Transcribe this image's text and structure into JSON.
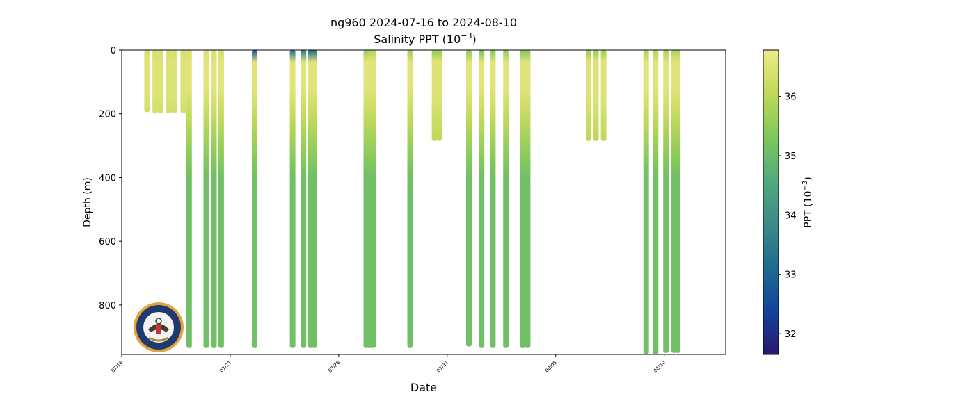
{
  "chart_data": {
    "type": "scatter",
    "title_line1": "ng960 2024-07-16 to 2024-08-10",
    "title_line2_main": "Salinity PPT (10",
    "title_line2_sup": "−3",
    "title_line2_tail": ")",
    "xlabel": "Date",
    "ylabel": "Depth (m)",
    "x_range": [
      "2024-07-16",
      "2024-08-12T20:00"
    ],
    "y_range": [
      0,
      955
    ],
    "y_inverted": true,
    "x_ticks": [
      {
        "date": "2024-07-16",
        "label": "07/16"
      },
      {
        "date": "2024-07-21",
        "label": "07/21"
      },
      {
        "date": "2024-07-26",
        "label": "07/26"
      },
      {
        "date": "2024-07-31",
        "label": "07/31"
      },
      {
        "date": "2024-08-05",
        "label": "08/05"
      },
      {
        "date": "2024-08-10",
        "label": "08/10"
      }
    ],
    "y_ticks": [
      0,
      200,
      400,
      600,
      800
    ],
    "colorbar": {
      "label_main": "PPT (10",
      "label_sup": "−3",
      "label_tail": ")",
      "range": [
        31.65,
        36.78
      ],
      "ticks": [
        32,
        33,
        34,
        35,
        36
      ],
      "colormap": "haline",
      "stops": [
        "#2a186c",
        "#14439c",
        "#1e6b8f",
        "#3d8a8a",
        "#51ab7d",
        "#7ec75d",
        "#c0d95a",
        "#f0e98a"
      ]
    },
    "profiles": [
      {
        "date": "2024-07-17T04:00",
        "max_depth": 195,
        "surface": 36.4
      },
      {
        "date": "2024-07-17T13:00",
        "max_depth": 198,
        "surface": 36.4
      },
      {
        "date": "2024-07-17T19:00",
        "max_depth": 198,
        "surface": 36.4
      },
      {
        "date": "2024-07-18T04:00",
        "max_depth": 198,
        "surface": 36.4
      },
      {
        "date": "2024-07-18T10:00",
        "max_depth": 198,
        "surface": 36.4
      },
      {
        "date": "2024-07-18T20:00",
        "max_depth": 198,
        "surface": 36.4
      },
      {
        "date": "2024-07-19T02:30",
        "max_depth": 935,
        "surface": 36.4
      },
      {
        "date": "2024-07-19T21:30",
        "max_depth": 935,
        "surface": 36.4
      },
      {
        "date": "2024-07-20T06:00",
        "max_depth": 935,
        "surface": 36.4
      },
      {
        "date": "2024-07-20T14:00",
        "max_depth": 935,
        "surface": 36.3
      },
      {
        "date": "2024-07-22T03:00",
        "max_depth": 935,
        "surface": 32.6
      },
      {
        "date": "2024-07-23T21:00",
        "max_depth": 935,
        "surface": 33.2
      },
      {
        "date": "2024-07-24T09:00",
        "max_depth": 935,
        "surface": 33.4
      },
      {
        "date": "2024-07-24T17:00",
        "max_depth": 935,
        "surface": 33.0
      },
      {
        "date": "2024-07-24T21:00",
        "max_depth": 935,
        "surface": 33.1
      },
      {
        "date": "2024-07-27T06:30",
        "max_depth": 935,
        "surface": 35.6
      },
      {
        "date": "2024-07-27T10:00",
        "max_depth": 935,
        "surface": 35.8
      },
      {
        "date": "2024-07-27T14:00",
        "max_depth": 935,
        "surface": 35.9
      },
      {
        "date": "2024-07-29T07:00",
        "max_depth": 935,
        "surface": 35.7
      },
      {
        "date": "2024-07-30T10:00",
        "max_depth": 285,
        "surface": 35.6
      },
      {
        "date": "2024-07-30T15:00",
        "max_depth": 285,
        "surface": 35.6
      },
      {
        "date": "2024-08-01T00:00",
        "max_depth": 930,
        "surface": 35.5
      },
      {
        "date": "2024-08-01T14:00",
        "max_depth": 935,
        "surface": 35.2
      },
      {
        "date": "2024-08-02T02:30",
        "max_depth": 935,
        "surface": 35.4
      },
      {
        "date": "2024-08-02T17:00",
        "max_depth": 935,
        "surface": 35.5
      },
      {
        "date": "2024-08-03T11:30",
        "max_depth": 935,
        "surface": 35.3
      },
      {
        "date": "2024-08-03T17:00",
        "max_depth": 935,
        "surface": 35.3
      },
      {
        "date": "2024-08-06T12:30",
        "max_depth": 285,
        "surface": 35.7
      },
      {
        "date": "2024-08-06T20:30",
        "max_depth": 285,
        "surface": 35.7
      },
      {
        "date": "2024-08-07T05:00",
        "max_depth": 285,
        "surface": 35.7
      },
      {
        "date": "2024-08-09T04:00",
        "max_depth": 955,
        "surface": 35.8
      },
      {
        "date": "2024-08-09T14:30",
        "max_depth": 955,
        "surface": 35.8
      },
      {
        "date": "2024-08-10T02:00",
        "max_depth": 950,
        "surface": 35.8
      },
      {
        "date": "2024-08-10T11:00",
        "max_depth": 950,
        "surface": 35.8
      },
      {
        "date": "2024-08-10T15:00",
        "max_depth": 950,
        "surface": 35.8
      }
    ]
  }
}
